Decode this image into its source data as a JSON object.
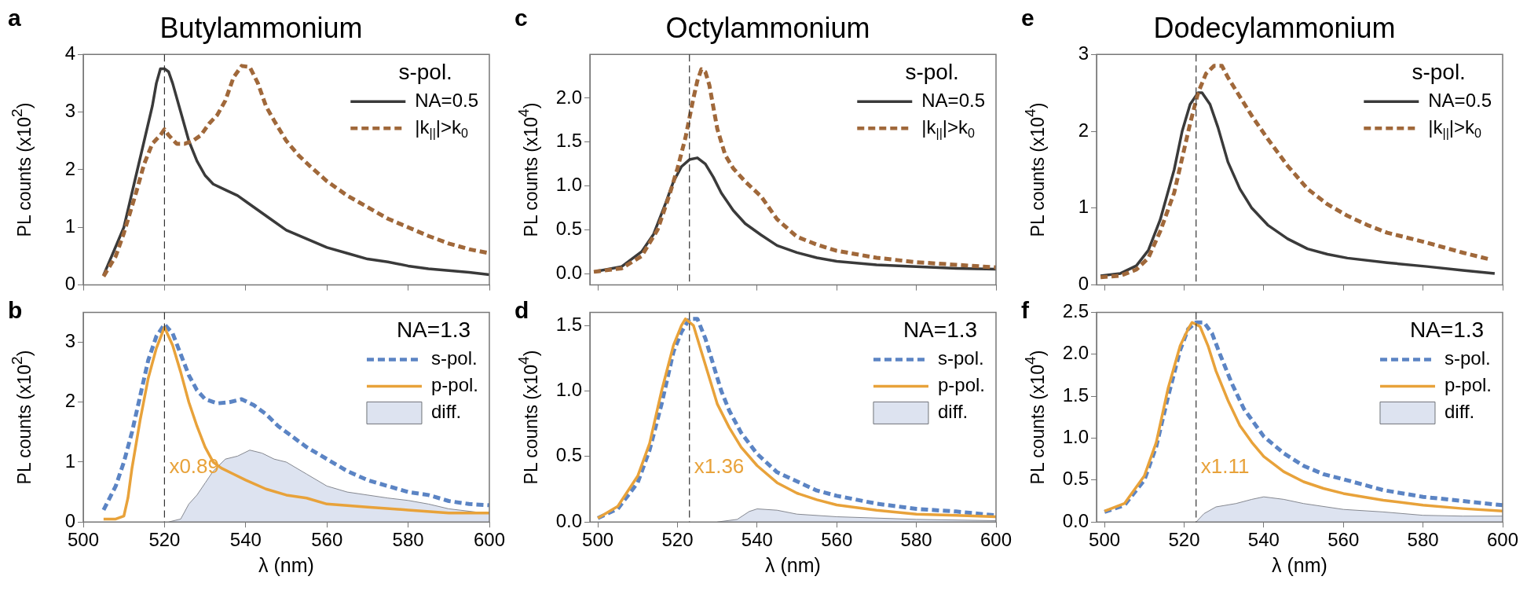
{
  "chart_data": [
    {
      "type": "line",
      "title": "Butylammonium",
      "ylabel": "PL counts (x10$^{2}$)",
      "legend_title": "s-pol.",
      "legend": "top right",
      "tick_labels": "y",
      "annotations": [
        "a"
      ],
      "xlim": [
        500,
        600
      ],
      "xticks": [
        500,
        520,
        540,
        560,
        580,
        600
      ],
      "ylim": [
        0,
        4
      ],
      "yticks": [
        0,
        1,
        2,
        3,
        4
      ],
      "ref_lines": [
        {
          "axis": "x",
          "value": 520,
          "color": "#333333",
          "line_style": "dashed"
        }
      ],
      "series": [
        {
          "name": "NA=0.5",
          "color": "#3a3a3a",
          "line_style": "solid",
          "x": [
            505,
            507,
            510,
            513,
            515,
            517,
            518,
            519,
            520,
            521,
            522,
            524,
            526,
            528,
            530,
            532,
            535,
            538,
            540,
            543,
            546,
            550,
            555,
            560,
            565,
            570,
            575,
            580,
            585,
            590,
            595,
            600
          ],
          "values": [
            0.17,
            0.5,
            1.0,
            1.9,
            2.5,
            3.1,
            3.5,
            3.75,
            3.75,
            3.7,
            3.5,
            3.0,
            2.5,
            2.15,
            1.9,
            1.75,
            1.65,
            1.55,
            1.45,
            1.3,
            1.15,
            0.95,
            0.8,
            0.65,
            0.55,
            0.45,
            0.4,
            0.33,
            0.28,
            0.25,
            0.22,
            0.18
          ]
        },
        {
          "name": "|k$_{||}$|>k$_{0}$",
          "color": "#a0683a",
          "line_style": "dashed",
          "x": [
            505,
            508,
            510,
            513,
            515,
            517,
            519,
            520,
            521,
            523,
            525,
            527,
            529,
            531,
            533,
            535,
            537,
            539,
            541,
            543,
            545,
            547,
            550,
            553,
            556,
            560,
            565,
            570,
            575,
            580,
            585,
            590,
            595,
            600
          ],
          "values": [
            0.15,
            0.5,
            0.9,
            1.6,
            2.1,
            2.45,
            2.6,
            2.7,
            2.6,
            2.45,
            2.45,
            2.5,
            2.6,
            2.8,
            2.95,
            3.2,
            3.6,
            3.8,
            3.78,
            3.5,
            3.1,
            2.85,
            2.5,
            2.25,
            2.05,
            1.8,
            1.55,
            1.35,
            1.15,
            1.0,
            0.85,
            0.72,
            0.62,
            0.55
          ]
        }
      ]
    },
    {
      "type": "line",
      "xlabel": "λ (nm)",
      "ylabel": "PL counts (x10$^{2}$)",
      "legend_title": "NA=1.3",
      "legend": "top right",
      "annotations": [
        "b",
        "x0.89"
      ],
      "xlim": [
        500,
        600
      ],
      "xticks": [
        500,
        520,
        540,
        560,
        580,
        600
      ],
      "ylim": [
        0,
        3.5
      ],
      "yticks": [
        0,
        1,
        2,
        3
      ],
      "ref_lines": [
        {
          "axis": "x",
          "value": 520,
          "color": "#333333",
          "line_style": "dashed"
        }
      ],
      "series": [
        {
          "name": "diff.",
          "type": "area",
          "color": "#dde3f0",
          "x": [
            521,
            524,
            526,
            528,
            530,
            532,
            535,
            538,
            541,
            544,
            547,
            550,
            555,
            560,
            565,
            570,
            575,
            580,
            585,
            590,
            595,
            600
          ],
          "values": [
            0,
            0.05,
            0.3,
            0.45,
            0.65,
            0.85,
            1.05,
            1.1,
            1.2,
            1.15,
            1.05,
            1.0,
            0.8,
            0.6,
            0.5,
            0.45,
            0.4,
            0.36,
            0.3,
            0.22,
            0.18,
            0.14
          ]
        },
        {
          "name": "s-pol.",
          "color": "#5b84c4",
          "line_style": "dashed",
          "x": [
            505,
            508,
            510,
            512,
            514,
            516,
            518,
            520,
            522,
            524,
            526,
            528,
            530,
            533,
            536,
            539,
            542,
            545,
            548,
            551,
            555,
            560,
            565,
            570,
            575,
            580,
            585,
            590,
            595,
            600
          ],
          "values": [
            0.2,
            0.6,
            1.0,
            1.5,
            2.1,
            2.7,
            3.1,
            3.3,
            3.15,
            2.8,
            2.45,
            2.2,
            2.05,
            1.98,
            2.0,
            2.05,
            1.95,
            1.8,
            1.6,
            1.45,
            1.25,
            1.05,
            0.85,
            0.7,
            0.6,
            0.5,
            0.45,
            0.35,
            0.3,
            0.28
          ]
        },
        {
          "name": "p-pol.",
          "color": "#e8a23a",
          "line_style": "solid",
          "x": [
            505,
            508,
            510,
            511,
            512,
            514,
            516,
            518,
            520,
            522,
            524,
            526,
            528,
            530,
            532,
            534,
            537,
            540,
            545,
            550,
            555,
            560,
            570,
            580,
            590,
            600
          ],
          "values": [
            0.05,
            0.05,
            0.1,
            0.4,
            0.9,
            1.7,
            2.4,
            2.9,
            3.25,
            2.95,
            2.5,
            2.0,
            1.6,
            1.25,
            1.0,
            0.9,
            0.8,
            0.7,
            0.55,
            0.45,
            0.4,
            0.3,
            0.25,
            0.2,
            0.15,
            0.15
          ]
        }
      ]
    },
    {
      "type": "line",
      "title": "Octylammonium",
      "ylabel": "PL counts (x10$^{4}$)",
      "legend_title": "s-pol.",
      "legend": "top right",
      "tick_labels": "y",
      "annotations": [
        "c"
      ],
      "xlim": [
        498,
        600
      ],
      "xticks": [
        500,
        520,
        540,
        560,
        580,
        600
      ],
      "ylim": [
        -0.13,
        2.5
      ],
      "yticks": [
        {
          "value": 0,
          "label": "0.0"
        },
        {
          "value": 0.5,
          "label": "0.5"
        },
        {
          "value": 1,
          "label": "1.0"
        },
        {
          "value": 1.5,
          "label": "1.5"
        },
        {
          "value": 2,
          "label": "2.0"
        }
      ],
      "ref_lines": [
        {
          "axis": "x",
          "value": 523,
          "color": "#333333",
          "line_style": "dashed"
        }
      ],
      "series": [
        {
          "name": "NA=0.5",
          "color": "#3a3a3a",
          "line_style": "solid",
          "x": [
            499,
            506,
            511,
            514,
            517,
            519,
            521,
            523,
            525,
            527,
            529,
            531,
            534,
            537,
            541,
            545,
            550,
            555,
            560,
            570,
            580,
            590,
            600
          ],
          "values": [
            0.02,
            0.08,
            0.25,
            0.45,
            0.8,
            1.05,
            1.22,
            1.3,
            1.32,
            1.25,
            1.1,
            0.92,
            0.72,
            0.57,
            0.44,
            0.32,
            0.24,
            0.18,
            0.14,
            0.1,
            0.08,
            0.06,
            0.05
          ]
        },
        {
          "name": "|k$_{||}$|>k$_{0}$",
          "color": "#a0683a",
          "line_style": "dashed",
          "x": [
            499,
            506,
            511,
            515,
            518,
            520,
            522,
            524,
            525,
            526,
            527,
            528,
            529,
            530,
            532,
            534,
            537,
            541,
            545,
            550,
            555,
            560,
            570,
            580,
            590,
            600
          ],
          "values": [
            0.02,
            0.06,
            0.2,
            0.5,
            0.9,
            1.2,
            1.55,
            2.0,
            2.2,
            2.33,
            2.3,
            2.15,
            1.9,
            1.65,
            1.35,
            1.2,
            1.05,
            0.88,
            0.62,
            0.42,
            0.33,
            0.26,
            0.18,
            0.13,
            0.1,
            0.07
          ]
        }
      ]
    },
    {
      "type": "line",
      "xlabel": "λ (nm)",
      "ylabel": "PL counts (x10$^{4}$)",
      "legend_title": "NA=1.3",
      "legend": "top right",
      "annotations": [
        "d",
        "x1.36"
      ],
      "xlim": [
        498,
        600
      ],
      "xticks": [
        500,
        520,
        540,
        560,
        580,
        600
      ],
      "ylim": [
        0,
        1.6
      ],
      "yticks": [
        {
          "value": 0,
          "label": "0.0"
        },
        {
          "value": 0.5,
          "label": "0.5"
        },
        {
          "value": 1,
          "label": "1.0"
        },
        {
          "value": 1.5,
          "label": "1.5"
        }
      ],
      "ref_lines": [
        {
          "axis": "x",
          "value": 523,
          "color": "#333333",
          "line_style": "dashed"
        }
      ],
      "series": [
        {
          "name": "diff.",
          "type": "area",
          "color": "#dde3f0",
          "x": [
            530,
            535,
            538,
            540,
            545,
            550,
            560,
            580,
            600
          ],
          "values": [
            0,
            0.02,
            0.08,
            0.1,
            0.09,
            0.06,
            0.04,
            0.02,
            0.01
          ]
        },
        {
          "name": "s-pol.",
          "color": "#5b84c4",
          "line_style": "dashed",
          "x": [
            500,
            505,
            510,
            513,
            516,
            519,
            521,
            523,
            525,
            527,
            529,
            531,
            533,
            536,
            540,
            545,
            550,
            555,
            560,
            570,
            580,
            590,
            600
          ],
          "values": [
            0.03,
            0.1,
            0.3,
            0.55,
            0.9,
            1.3,
            1.45,
            1.55,
            1.55,
            1.4,
            1.2,
            1.0,
            0.85,
            0.68,
            0.52,
            0.38,
            0.31,
            0.24,
            0.2,
            0.14,
            0.1,
            0.08,
            0.05
          ]
        },
        {
          "name": "p-pol.",
          "color": "#e8a23a",
          "line_style": "solid",
          "x": [
            500,
            505,
            510,
            513,
            516,
            519,
            521,
            522,
            524,
            526,
            528,
            530,
            533,
            536,
            540,
            545,
            550,
            555,
            560,
            570,
            580,
            590,
            600
          ],
          "values": [
            0.03,
            0.12,
            0.35,
            0.6,
            1.0,
            1.35,
            1.5,
            1.55,
            1.5,
            1.3,
            1.1,
            0.9,
            0.72,
            0.57,
            0.43,
            0.3,
            0.22,
            0.17,
            0.13,
            0.09,
            0.06,
            0.05,
            0.04
          ]
        }
      ]
    },
    {
      "type": "line",
      "title": "Dodecylammonium",
      "ylabel": "PL counts (x10$^{4}$)",
      "legend_title": "s-pol.",
      "legend": "top right",
      "tick_labels": "y",
      "annotations": [
        "e"
      ],
      "xlim": [
        498,
        600
      ],
      "xticks": [
        500,
        520,
        540,
        560,
        580,
        600
      ],
      "ylim": [
        0,
        3
      ],
      "yticks": [
        0,
        1,
        2,
        3
      ],
      "ref_lines": [
        {
          "axis": "x",
          "value": 523,
          "color": "#333333",
          "line_style": "dashed"
        }
      ],
      "series": [
        {
          "name": "NA=0.5",
          "color": "#3a3a3a",
          "line_style": "solid",
          "x": [
            499,
            504,
            508,
            511,
            514,
            517.5,
            519.5,
            521.5,
            523.5,
            524.5,
            526.5,
            528.5,
            531,
            534,
            537,
            541,
            546,
            551,
            556,
            561,
            571,
            581,
            590,
            598
          ],
          "values": [
            0.12,
            0.15,
            0.25,
            0.45,
            0.85,
            1.5,
            2.0,
            2.35,
            2.5,
            2.5,
            2.35,
            2.05,
            1.6,
            1.25,
            1.0,
            0.78,
            0.6,
            0.47,
            0.4,
            0.35,
            0.29,
            0.24,
            0.19,
            0.15
          ]
        },
        {
          "name": "|k$_{||}$|>k$_{0}$",
          "color": "#a0683a",
          "line_style": "dashed",
          "x": [
            499,
            504,
            508,
            511,
            514,
            517.5,
            519.5,
            521.5,
            523.5,
            525.5,
            527.5,
            529.5,
            531,
            534,
            537,
            541,
            546,
            551,
            556,
            561,
            566,
            571,
            581,
            590,
            597
          ],
          "values": [
            0.1,
            0.12,
            0.2,
            0.35,
            0.7,
            1.2,
            1.65,
            2.1,
            2.5,
            2.75,
            2.85,
            2.85,
            2.7,
            2.45,
            2.2,
            1.9,
            1.55,
            1.25,
            1.05,
            0.9,
            0.78,
            0.68,
            0.55,
            0.42,
            0.33
          ]
        }
      ]
    },
    {
      "type": "line",
      "xlabel": "λ (nm)",
      "ylabel": "PL counts (x10$^{4}$)",
      "legend_title": "NA=1.3",
      "legend": "top right",
      "annotations": [
        "f",
        "x1.11"
      ],
      "xlim": [
        498,
        600
      ],
      "xticks": [
        500,
        520,
        540,
        560,
        580,
        600
      ],
      "ylim": [
        0,
        2.5
      ],
      "yticks": [
        {
          "value": 0,
          "label": "0.0"
        },
        {
          "value": 0.5,
          "label": "0.5"
        },
        {
          "value": 1,
          "label": "1.0"
        },
        {
          "value": 1.5,
          "label": "1.5"
        },
        {
          "value": 2,
          "label": "2.0"
        },
        {
          "value": 2.5,
          "label": "2.5"
        }
      ],
      "ref_lines": [
        {
          "axis": "x",
          "value": 523,
          "color": "#333333",
          "line_style": "dashed"
        }
      ],
      "series": [
        {
          "name": "diff.",
          "type": "area",
          "color": "#dde3f0",
          "x": [
            523,
            525,
            528,
            533,
            537,
            540,
            545,
            550,
            560,
            570,
            580,
            590,
            600
          ],
          "values": [
            0,
            0.1,
            0.18,
            0.22,
            0.27,
            0.3,
            0.27,
            0.22,
            0.15,
            0.12,
            0.08,
            0.07,
            0.07
          ]
        },
        {
          "name": "s-pol.",
          "color": "#5b84c4",
          "line_style": "dashed",
          "x": [
            500,
            505,
            510,
            513,
            516,
            519,
            521,
            523,
            525,
            527,
            529,
            532,
            535,
            540,
            545,
            550,
            555,
            560,
            570,
            580,
            590,
            600
          ],
          "values": [
            0.12,
            0.2,
            0.5,
            0.9,
            1.5,
            2.05,
            2.3,
            2.38,
            2.38,
            2.25,
            2.0,
            1.65,
            1.35,
            1.02,
            0.82,
            0.67,
            0.57,
            0.51,
            0.38,
            0.3,
            0.25,
            0.2
          ]
        },
        {
          "name": "p-pol.",
          "color": "#e8a23a",
          "line_style": "solid",
          "x": [
            500,
            505,
            510,
            513,
            516,
            519,
            521,
            522,
            524,
            526,
            528,
            531,
            534,
            537,
            540,
            545,
            550,
            555,
            560,
            570,
            580,
            590,
            600
          ],
          "values": [
            0.13,
            0.22,
            0.55,
            0.95,
            1.6,
            2.1,
            2.3,
            2.38,
            2.33,
            2.1,
            1.8,
            1.45,
            1.15,
            0.95,
            0.78,
            0.6,
            0.48,
            0.4,
            0.34,
            0.26,
            0.2,
            0.16,
            0.13
          ]
        }
      ]
    }
  ]
}
